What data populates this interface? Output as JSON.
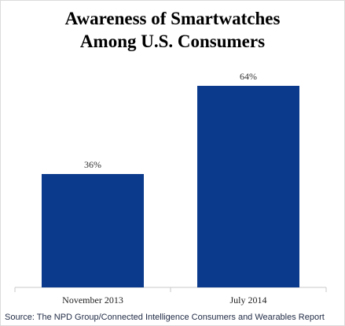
{
  "chart_data": {
    "type": "bar",
    "title_line1": "Awareness of Smartwatches",
    "title_line2": "Among U.S. Consumers",
    "categories": [
      "November 2013",
      "July 2014"
    ],
    "values": [
      36,
      64
    ],
    "value_labels": [
      "36%",
      "64%"
    ],
    "ylim": [
      0,
      100
    ],
    "grid": false,
    "legend": "none",
    "bar_color": "#0b3a8c",
    "source": "Source: The NPD Group/Connected Intelligence Consumers and Wearables Report"
  }
}
